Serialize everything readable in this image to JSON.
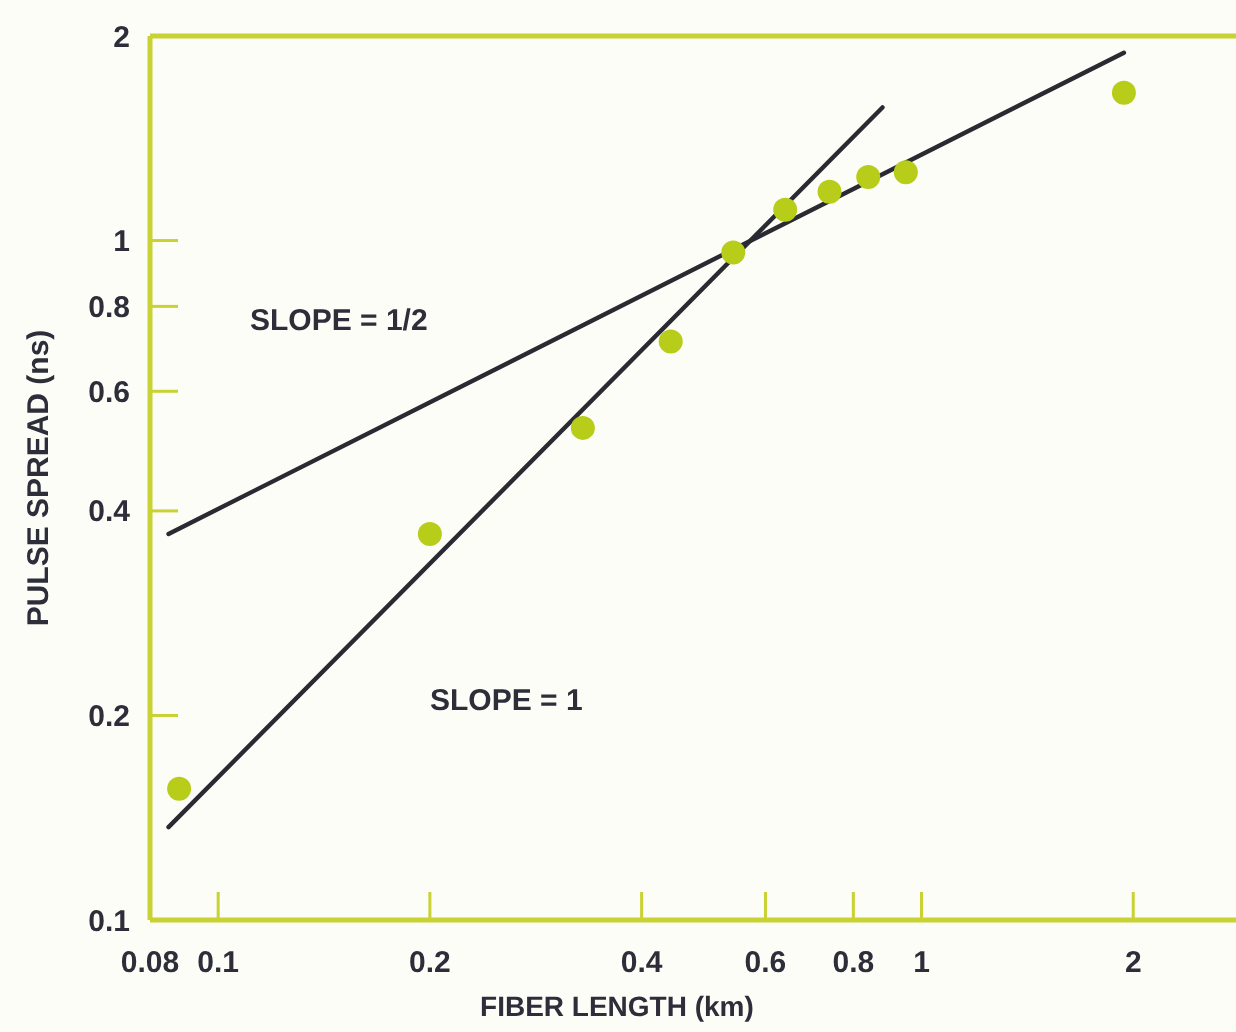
{
  "chart_data": {
    "type": "scatter",
    "xlabel": "FIBER LENGTH (km)",
    "ylabel": "PULSE SPREAD (ns)",
    "log": "xy",
    "grid": false,
    "marker": "circle",
    "xlim": [
      0.08,
      2.8
    ],
    "xticks": [
      0.08,
      0.1,
      0.2,
      0.4,
      0.6,
      0.8,
      1,
      2
    ],
    "ylim": [
      0.1,
      2
    ],
    "yticks": [
      0.1,
      0.2,
      0.4,
      0.6,
      0.8,
      1,
      2
    ],
    "annotations": [
      "SLOPE = 1/2",
      "SLOPE = 1"
    ],
    "series": [
      {
        "color": "#b8cc1a",
        "x": [
          0.088,
          0.2,
          0.33,
          0.44,
          0.54,
          0.64,
          0.74,
          0.84,
          0.95,
          1.94
        ],
        "values": [
          0.156,
          0.37,
          0.53,
          0.71,
          0.96,
          1.11,
          1.18,
          1.24,
          1.26,
          1.65
        ]
      },
      {
        "type": "line",
        "marker": "none",
        "color": "#2a2a33",
        "x": [
          0.085,
          1.94
        ],
        "values": [
          0.37,
          1.89
        ]
      },
      {
        "type": "line",
        "marker": "none",
        "color": "#2a2a33",
        "x": [
          0.085,
          0.88
        ],
        "values": [
          0.137,
          1.57
        ]
      }
    ]
  }
}
